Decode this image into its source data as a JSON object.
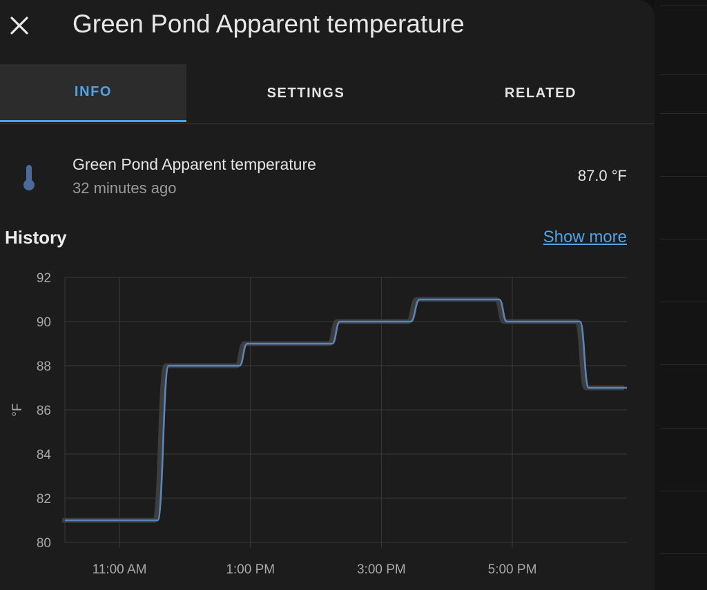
{
  "dialog": {
    "title": "Green Pond Apparent temperature",
    "close_icon": "close-icon"
  },
  "tabs": [
    {
      "label": "INFO",
      "active": true
    },
    {
      "label": "SETTINGS",
      "active": false
    },
    {
      "label": "RELATED",
      "active": false
    }
  ],
  "entity": {
    "icon": "thermometer-icon",
    "name": "Green Pond Apparent temperature",
    "last_changed": "32 minutes ago",
    "state": "87.0 °F"
  },
  "history": {
    "title": "History",
    "show_more": "Show more"
  },
  "colors": {
    "accent": "#4fa3e8",
    "line": "#5b84b9",
    "icon": "#4a6a9a"
  },
  "chart_data": {
    "type": "line",
    "ylabel": "°F",
    "xlabel": "",
    "ylim": [
      80,
      92
    ],
    "yticks": [
      "92",
      "90",
      "88",
      "86",
      "84",
      "82",
      "80"
    ],
    "xlim": [
      "10:10 AM",
      "6:45 PM"
    ],
    "xticks": [
      "11:00 AM",
      "1:00 PM",
      "3:00 PM",
      "5:00 PM"
    ],
    "grid": true,
    "series": [
      {
        "points": [
          {
            "time": "10:10 AM",
            "value": 81
          },
          {
            "time": "11:35 AM",
            "value": 81
          },
          {
            "time": "11:45 AM",
            "value": 88
          },
          {
            "time": "12:50 PM",
            "value": 88
          },
          {
            "time": "12:57 PM",
            "value": 89
          },
          {
            "time": "2:15 PM",
            "value": 89
          },
          {
            "time": "2:22 PM",
            "value": 90
          },
          {
            "time": "3:27 PM",
            "value": 90
          },
          {
            "time": "3:35 PM",
            "value": 91
          },
          {
            "time": "4:48 PM",
            "value": 91
          },
          {
            "time": "4:55 PM",
            "value": 90
          },
          {
            "time": "6:02 PM",
            "value": 90
          },
          {
            "time": "6:10 PM",
            "value": 87
          },
          {
            "time": "6:45 PM",
            "value": 87
          }
        ]
      }
    ]
  }
}
